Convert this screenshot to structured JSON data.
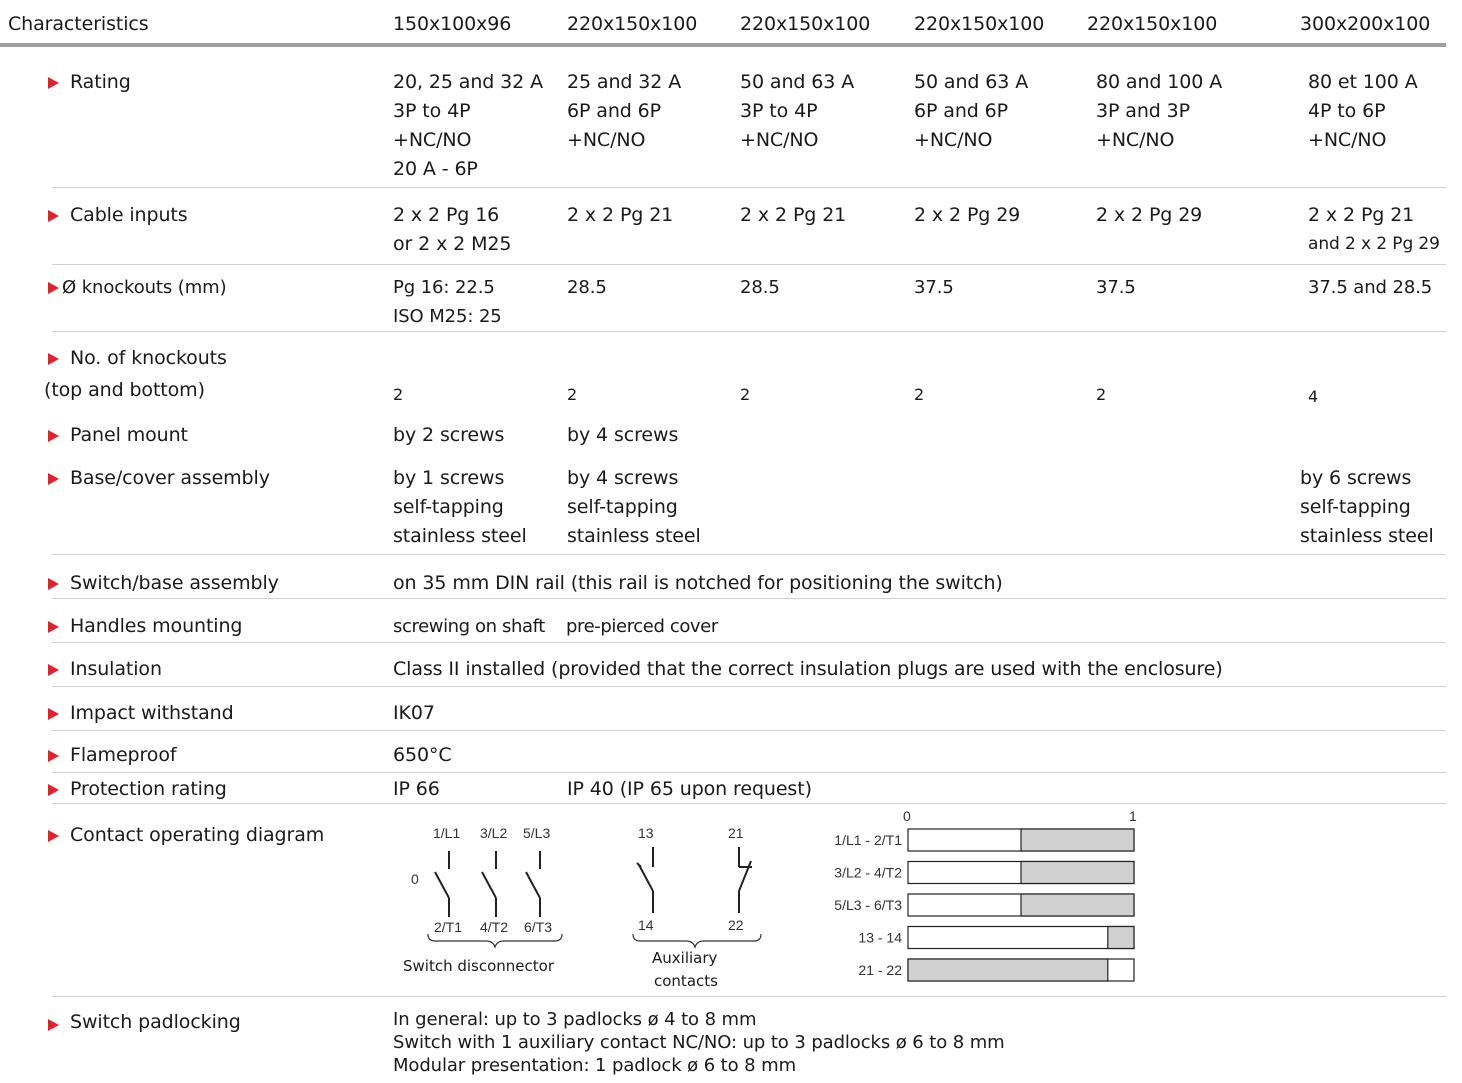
{
  "header": {
    "characteristics": "Characteristics",
    "columns": [
      "150x100x96",
      "220x150x100",
      "220x150x100",
      "220x150x100",
      "220x150x100",
      "300x200x100"
    ]
  },
  "rows": {
    "rating": {
      "label": "Rating",
      "cells": [
        [
          "20, 25 and 32 A",
          "3P to 4P",
          "+NC/NO",
          "20 A - 6P"
        ],
        [
          "25 and 32 A",
          "6P and 6P",
          "+NC/NO"
        ],
        [
          "50 and 63 A",
          "3P to 4P",
          "+NC/NO"
        ],
        [
          "50 and 63 A",
          "6P and 6P",
          "+NC/NO"
        ],
        [
          "80 and 100 A",
          "3P and 3P",
          "+NC/NO"
        ],
        [
          "80 et 100 A",
          "4P to 6P",
          "+NC/NO"
        ]
      ]
    },
    "cable_inputs": {
      "label": "Cable inputs",
      "cells": [
        [
          "2 x 2 Pg 16",
          "or 2 x 2 M25"
        ],
        [
          "2 x 2 Pg 21"
        ],
        [
          "2 x 2 Pg 21"
        ],
        [
          "2 x 2 Pg 29"
        ],
        [
          "2 x 2 Pg 29"
        ],
        [
          "2 x 2 Pg 21",
          "and 2 x 2 Pg 29"
        ]
      ]
    },
    "knockouts_diameter": {
      "label": "Ø knockouts (mm)",
      "cells": [
        [
          "Pg 16: 22.5",
          "ISO M25: 25"
        ],
        [
          "28.5"
        ],
        [
          "28.5"
        ],
        [
          "37.5"
        ],
        [
          "37.5"
        ],
        [
          "37.5 and 28.5"
        ]
      ]
    },
    "knockouts_count": {
      "label_line1": "No. of knockouts",
      "label_line2": "(top and bottom)",
      "cells": [
        "2",
        "2",
        "2",
        "2",
        "2",
        "4"
      ]
    },
    "panel_mount": {
      "label": "Panel mount",
      "cells": [
        "by 2 screws",
        "by 4 screws"
      ]
    },
    "base_cover": {
      "label": "Base/cover assembly",
      "cells": [
        [
          "by 1 screws",
          "self-tapping",
          "stainless steel"
        ],
        [
          "by 4 screws",
          "self-tapping",
          "stainless steel"
        ],
        [
          "by 6 screws",
          "self-tapping",
          "stainless steel"
        ]
      ]
    },
    "switch_base": {
      "label": "Switch/base assembly",
      "value": "on 35 mm DIN rail (this rail is notched for positioning the switch)"
    },
    "handles": {
      "label": "Handles mounting",
      "value1": "screwing on shaft",
      "value2": "pre-pierced cover"
    },
    "insulation": {
      "label": "Insulation",
      "value": "Class II installed (provided that the correct insulation plugs are used with the enclosure)"
    },
    "impact": {
      "label": "Impact withstand",
      "value": "IK07"
    },
    "flameproof": {
      "label": "Flameproof",
      "value": "650°C"
    },
    "protection": {
      "label": "Protection rating",
      "value1": "IP 66",
      "value2": "IP 40 (IP 65 upon request)"
    },
    "contact_diagram": {
      "label": "Contact operating diagram",
      "switch": {
        "state_label": "0",
        "top_terminals": [
          "1/L1",
          "3/L2",
          "5/L3"
        ],
        "bottom_terminals": [
          "2/T1",
          "4/T2",
          "6/T3"
        ],
        "caption": "Switch disconnector"
      },
      "aux": {
        "top_terminals": [
          "13",
          "21"
        ],
        "bottom_terminals": [
          "14",
          "22"
        ],
        "caption_line1": "Auxiliary",
        "caption_line2": "contacts"
      },
      "timing": {
        "scale_start": "0",
        "scale_end": "1",
        "bars": [
          {
            "label": "1/L1 - 2/T1",
            "closed_from": 0.5,
            "closed_to": 1.0
          },
          {
            "label": "3/L2 - 4/T2",
            "closed_from": 0.5,
            "closed_to": 1.0
          },
          {
            "label": "5/L3 - 6/T3",
            "closed_from": 0.5,
            "closed_to": 1.0
          },
          {
            "label": "13 - 14",
            "closed_from": 0.884,
            "closed_to": 1.0
          },
          {
            "label": "21 - 22",
            "closed_from": 0.0,
            "closed_to": 0.884
          }
        ],
        "closed_color": "#d0d0d0",
        "open_color": "#ffffff"
      }
    },
    "padlocking": {
      "label": "Switch padlocking",
      "lines": [
        "In general: up to 3 padlocks ø 4 to 8 mm",
        "Switch with 1 auxiliary contact NC/NO: up to 3 padlocks ø 6 to 8 mm",
        "Modular presentation: 1 padlock ø 6 to 8 mm"
      ]
    }
  },
  "colors": {
    "bullet": "#d7262e",
    "header_rule": "#9e9e9e",
    "row_rule": "#d2d2d2"
  }
}
